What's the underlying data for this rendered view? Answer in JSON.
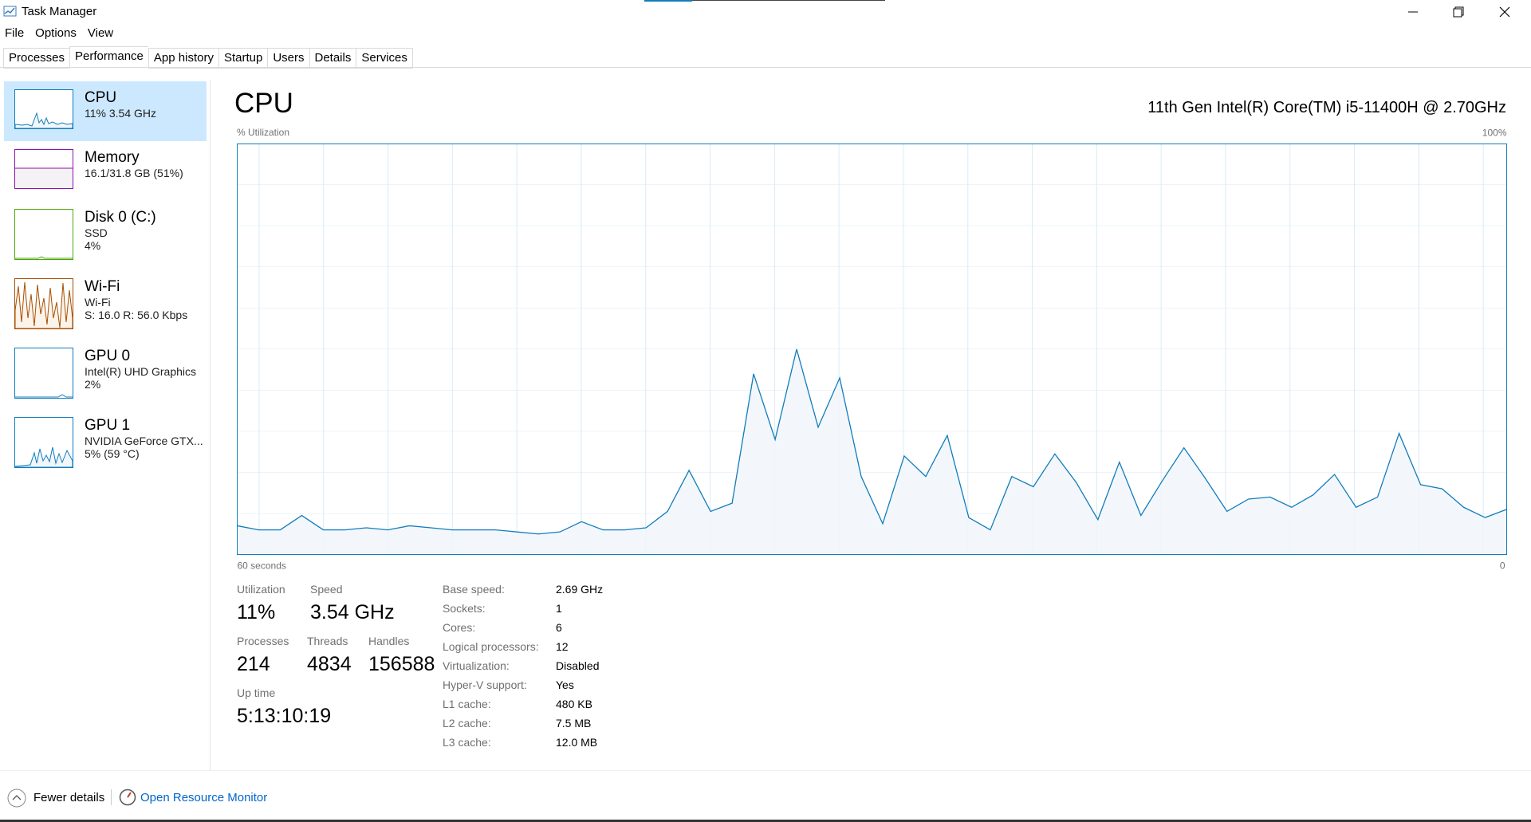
{
  "window": {
    "title": "Task Manager"
  },
  "menu": [
    "File",
    "Options",
    "View"
  ],
  "tabs": [
    "Processes",
    "Performance",
    "App history",
    "Startup",
    "Users",
    "Details",
    "Services"
  ],
  "sidebar": [
    {
      "name": "CPU",
      "lines": [
        "11% 3.54 GHz"
      ]
    },
    {
      "name": "Memory",
      "lines": [
        "16.1/31.8 GB (51%)"
      ]
    },
    {
      "name": "Disk 0 (C:)",
      "lines": [
        "SSD",
        "4%"
      ]
    },
    {
      "name": "Wi-Fi",
      "lines": [
        "Wi-Fi",
        "S: 16.0 R: 56.0 Kbps"
      ]
    },
    {
      "name": "GPU 0",
      "lines": [
        "Intel(R) UHD Graphics",
        "2%"
      ]
    },
    {
      "name": "GPU 1",
      "lines": [
        "NVIDIA GeForce GTX...",
        "5% (59 °C)"
      ]
    }
  ],
  "header": {
    "title": "CPU",
    "processor": "11th Gen Intel(R) Core(TM) i5-11400H @ 2.70GHz",
    "y_label": "% Utilization"
  },
  "chart_data": {
    "type": "line",
    "color": "#117dbb",
    "fill": "#f1f6fa",
    "values": [
      7,
      6,
      6,
      9.5,
      6,
      6,
      6.5,
      6,
      7,
      6.5,
      6,
      6,
      6,
      5.5,
      5,
      5.5,
      8,
      6,
      6,
      6.5,
      10.5,
      20.5,
      10.5,
      12.5,
      44,
      28,
      50,
      31,
      43,
      19,
      7.5,
      24,
      19,
      29,
      9,
      6,
      19,
      16.5,
      24.5,
      17.5,
      8.5,
      22.5,
      9.5,
      18,
      26,
      18.5,
      10.5,
      13.5,
      14,
      11.5,
      14.5,
      19.5,
      11.5,
      14,
      29.5,
      17,
      16,
      11.5,
      9,
      11
    ],
    "ylim": [
      0,
      100
    ],
    "yticks": [
      {
        "value": 100,
        "label": "100%"
      }
    ],
    "xlim": [
      60,
      0
    ],
    "xticks": [
      {
        "value": 60,
        "label": "60 seconds"
      },
      {
        "value": 0,
        "label": "0"
      }
    ]
  },
  "stats": {
    "utilization": {
      "label": "Utilization",
      "value": "11%"
    },
    "speed": {
      "label": "Speed",
      "value": "3.54 GHz"
    },
    "processes": {
      "label": "Processes",
      "value": "214"
    },
    "threads": {
      "label": "Threads",
      "value": "4834"
    },
    "handles": {
      "label": "Handles",
      "value": "156588"
    },
    "uptime": {
      "label": "Up time",
      "value": "5:13:10:19"
    }
  },
  "details": [
    {
      "label": "Base speed:",
      "value": "2.69 GHz"
    },
    {
      "label": "Sockets:",
      "value": "1"
    },
    {
      "label": "Cores:",
      "value": "6"
    },
    {
      "label": "Logical processors:",
      "value": "12"
    },
    {
      "label": "Virtualization:",
      "value": "Disabled"
    },
    {
      "label": "Hyper-V support:",
      "value": "Yes"
    },
    {
      "label": "L1 cache:",
      "value": "480 KB"
    },
    {
      "label": "L2 cache:",
      "value": "7.5 MB"
    },
    {
      "label": "L3 cache:",
      "value": "12.0 MB"
    }
  ],
  "footer": {
    "fewer": "Fewer details",
    "monitor": "Open Resource Monitor"
  }
}
